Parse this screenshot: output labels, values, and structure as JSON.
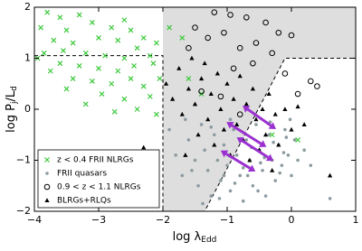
{
  "chart_data": {
    "type": "scatter",
    "x_label": [
      "log λ",
      "Edd"
    ],
    "y_label": [
      "log P",
      "j",
      "/L",
      "d"
    ],
    "xlim": [
      -4,
      1
    ],
    "ylim": [
      -2,
      2
    ],
    "xticks": [
      {
        "value": -4,
        "label": "−4"
      },
      {
        "value": -3,
        "label": "−3"
      },
      {
        "value": -2,
        "label": "−2"
      },
      {
        "value": -1,
        "label": "−1"
      },
      0,
      1
    ],
    "yticks": [
      {
        "value": -2,
        "label": "−2"
      },
      {
        "value": -1,
        "label": "−1"
      },
      0,
      1,
      2
    ],
    "region": {
      "color": "#dedede",
      "x": [
        -2,
        1,
        1,
        -0.1,
        -1.35,
        -2
      ],
      "y": [
        2,
        2,
        1,
        1,
        -2,
        -2
      ]
    },
    "boundary": {
      "x": [
        -4,
        -2,
        -2,
        -1.35,
        -0.1,
        1
      ],
      "y": [
        1.05,
        1.05,
        -2,
        -2,
        1,
        1
      ]
    },
    "arrows": {
      "color": "#9b30d0",
      "x0": [
        -0.76,
        -1.01,
        -0.85,
        -1.1
      ],
      "y0": [
        0.07,
        -0.25,
        -0.55,
        -0.81
      ],
      "x1": [
        -0.24,
        -0.39,
        -0.28,
        -0.56
      ],
      "y1": [
        -0.39,
        -0.74,
        -1.01,
        -1.22
      ]
    },
    "series": [
      {
        "name": "z < 0.4 FRII NLRGs",
        "color": "#3cc83c",
        "marker": "x",
        "x": [
          -3.8,
          -3.6,
          -3.3,
          -3.9,
          -3.5,
          -3.1,
          -2.8,
          -2.5,
          -2.3,
          -2.1,
          -3.7,
          -3.4,
          -3.0,
          -2.7,
          -2.4,
          -3.85,
          -3.55,
          -3.2,
          -2.9,
          -2.6,
          -2.2,
          -3.6,
          -3.3,
          -3.0,
          -2.7,
          -2.45,
          -2.15,
          -3.1,
          -2.8,
          -2.5,
          -2.3,
          -3.4,
          -2.95,
          -2.6,
          -2.2,
          -3.5,
          -2.4,
          -2.75,
          -2.1,
          -3.2,
          -1.9,
          -1.7,
          -1.6,
          -1.4,
          -2.05,
          -3.75,
          -0.3,
          0.1,
          -2.6,
          -3.95
        ],
        "y": [
          1.9,
          1.8,
          1.85,
          1.6,
          1.55,
          1.7,
          1.6,
          1.55,
          1.4,
          1.3,
          1.35,
          1.3,
          1.4,
          1.35,
          1.2,
          1.1,
          1.15,
          1.1,
          1.05,
          1.0,
          1.05,
          0.9,
          0.85,
          0.8,
          0.75,
          0.85,
          0.9,
          0.55,
          0.5,
          0.6,
          0.45,
          0.6,
          0.3,
          0.2,
          0.25,
          0.4,
          0.0,
          -0.05,
          -0.1,
          0.1,
          1.6,
          1.4,
          0.6,
          0.3,
          0.6,
          0.75,
          -0.5,
          -0.6,
          1.75,
          1.0
        ]
      },
      {
        "name": "FRII quasars",
        "color": "#8c9ba0",
        "marker": "dot",
        "x": [
          -1.9,
          -1.8,
          -1.7,
          -1.6,
          -1.5,
          -1.45,
          -1.4,
          -1.35,
          -1.3,
          -1.25,
          -1.2,
          -1.15,
          -1.1,
          -1.05,
          -1.0,
          -0.95,
          -0.9,
          -0.85,
          -0.8,
          -0.75,
          -0.7,
          -0.65,
          -0.6,
          -0.55,
          -0.5,
          -0.45,
          -0.4,
          -0.35,
          -0.3,
          -0.25,
          -0.2,
          -0.15,
          -0.1,
          -0.05,
          0.0,
          0.05,
          0.1,
          0.2,
          0.3,
          0.6,
          -1.55,
          -1.25,
          -1.05,
          -0.95,
          -0.75,
          -0.62,
          -0.48,
          -0.33,
          -0.18,
          -0.08,
          -1.38,
          -1.12,
          -0.88,
          -0.68,
          -0.52,
          -0.42,
          -0.28,
          -0.12,
          -1.65,
          -0.02
        ],
        "y": [
          -0.4,
          -0.9,
          -1.3,
          -0.6,
          -1.0,
          -1.5,
          -0.3,
          -0.8,
          -1.2,
          -1.7,
          -0.5,
          -1.0,
          -1.4,
          -0.7,
          -1.1,
          -1.6,
          -0.4,
          -0.9,
          -1.3,
          -1.8,
          -0.6,
          -1.0,
          -1.5,
          -0.3,
          -0.8,
          -1.2,
          -1.7,
          -0.5,
          -1.0,
          -1.4,
          -0.7,
          -1.1,
          -0.4,
          -0.9,
          -1.3,
          -0.6,
          -1.0,
          -0.8,
          -1.1,
          -1.75,
          -1.2,
          -0.35,
          -1.3,
          -0.2,
          -1.15,
          -0.75,
          -1.05,
          -0.25,
          -1.25,
          -0.55,
          -1.85,
          -1.75,
          -1.45,
          -1.3,
          -1.6,
          -0.95,
          -0.65,
          -0.85,
          -0.2,
          -0.2
        ]
      },
      {
        "name": "0.9 < z < 1.1 NLRGs",
        "color": "#000000",
        "marker": "circle",
        "x": [
          -1.2,
          -0.95,
          -0.7,
          -0.4,
          -0.2,
          0.0,
          -1.5,
          -1.3,
          -1.05,
          -0.8,
          -0.55,
          -0.3,
          0.3,
          0.4,
          -1.6,
          -0.9,
          -0.6,
          -0.1,
          -1.4,
          -1.1,
          0.1,
          -0.8
        ],
        "y": [
          1.9,
          1.85,
          1.8,
          1.7,
          1.5,
          1.45,
          1.6,
          1.4,
          1.5,
          1.2,
          1.3,
          1.1,
          0.55,
          0.45,
          1.2,
          0.8,
          0.9,
          0.7,
          0.35,
          0.25,
          0.3,
          -0.1
        ]
      },
      {
        "name": "BLRGs+RLQs",
        "color": "#000000",
        "marker": "triangle",
        "x": [
          -1.95,
          -1.85,
          -1.75,
          -1.7,
          -1.6,
          -1.55,
          -1.5,
          -1.45,
          -1.4,
          -1.35,
          -1.3,
          -1.25,
          -1.2,
          -1.15,
          -1.1,
          -1.05,
          -1.0,
          -0.95,
          -0.9,
          -0.85,
          -0.8,
          -0.75,
          -0.7,
          -0.65,
          -0.6,
          -0.55,
          -0.5,
          -0.45,
          -0.4,
          -0.35,
          -0.3,
          -0.25,
          -0.2,
          -0.1,
          0.0,
          0.1,
          0.2,
          0.6,
          -2.3,
          -1.65
        ],
        "y": [
          0.5,
          0.2,
          0.8,
          -0.1,
          0.4,
          1.0,
          0.1,
          -0.5,
          0.6,
          0.9,
          -0.2,
          0.3,
          -0.7,
          0.7,
          0.0,
          -0.4,
          0.5,
          -0.9,
          0.2,
          -0.3,
          0.65,
          -0.6,
          0.1,
          -1.0,
          0.4,
          -0.2,
          -0.8,
          0.0,
          -0.5,
          0.3,
          -1.2,
          -0.1,
          -0.7,
          0.0,
          -0.4,
          0.05,
          -0.3,
          -1.3,
          -0.75,
          -0.9
        ]
      }
    ]
  }
}
